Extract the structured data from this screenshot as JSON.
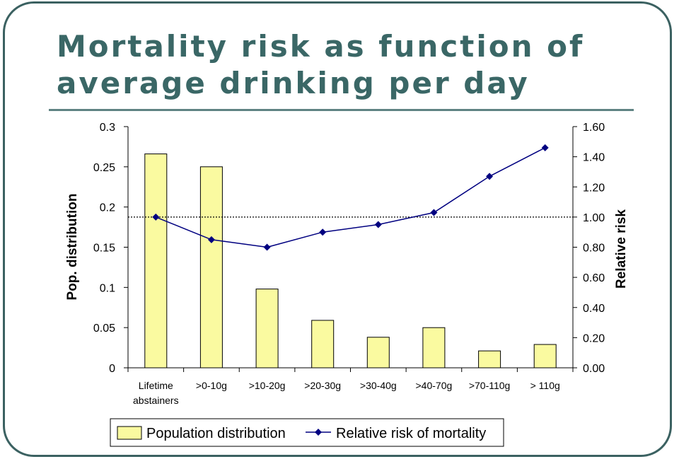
{
  "slide": {
    "title_line1": "Mortality risk as function of",
    "title_line2": "average drinking per day"
  },
  "chart_data": {
    "type": "bar",
    "categories": [
      [
        "Lifetime",
        "abstainers"
      ],
      [
        ">0-10g"
      ],
      [
        ">10-20g"
      ],
      [
        ">20-30g"
      ],
      [
        ">30-40g"
      ],
      [
        ">40-70g"
      ],
      [
        ">70-110g"
      ],
      [
        "> 110g"
      ]
    ],
    "series": [
      {
        "name": "Population distribution",
        "kind": "bar",
        "axis": "left",
        "color": "#fafaa0",
        "values": [
          0.266,
          0.25,
          0.098,
          0.059,
          0.038,
          0.05,
          0.021,
          0.029
        ]
      },
      {
        "name": "Relative risk of mortality",
        "kind": "line",
        "axis": "right",
        "color": "#000080",
        "values": [
          1.0,
          0.85,
          0.8,
          0.9,
          0.95,
          1.03,
          1.27,
          1.46
        ]
      }
    ],
    "left_axis": {
      "label": "Pop. distribution",
      "ylim": [
        0,
        0.3
      ],
      "ticks": [
        0,
        0.05,
        0.1,
        0.15,
        0.2,
        0.25,
        0.3
      ],
      "tick_labels": [
        "0",
        "0.05",
        "0.1",
        "0.15",
        "0.2",
        "0.25",
        "0.3"
      ]
    },
    "right_axis": {
      "label": "Relative risk",
      "ylim": [
        0,
        1.6
      ],
      "ticks": [
        0,
        0.2,
        0.4,
        0.6,
        0.8,
        1.0,
        1.2,
        1.4,
        1.6
      ],
      "tick_labels": [
        "0.00",
        "0.20",
        "0.40",
        "0.60",
        "0.80",
        "1.00",
        "1.20",
        "1.40",
        "1.60"
      ]
    },
    "reference_line": {
      "axis": "right",
      "value": 1.0,
      "style": "dotted"
    },
    "grid": false,
    "legend": {
      "position": "bottom",
      "entries": [
        "Population distribution",
        "Relative risk of mortality"
      ]
    }
  }
}
